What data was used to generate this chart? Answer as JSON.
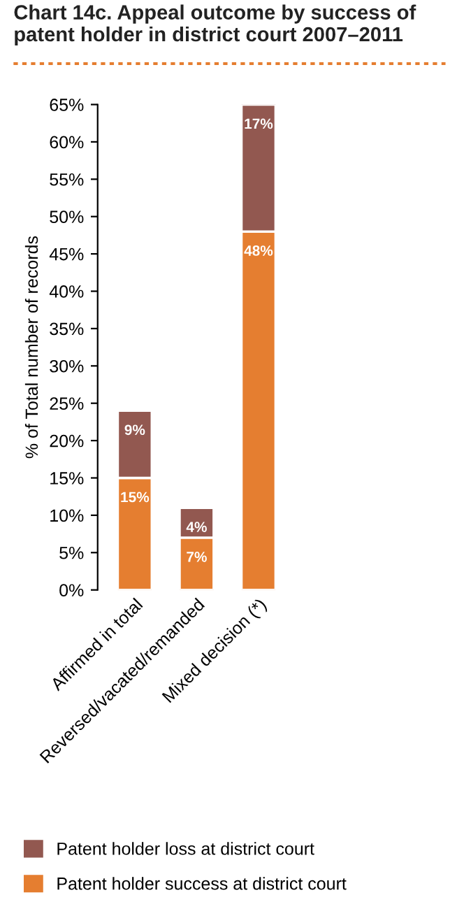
{
  "chart_data": {
    "type": "bar",
    "title": "Chart 14c. Appeal outcome by success of patent holder in district court 2007–2011",
    "ylabel": "% of Total number of records",
    "categories": [
      "Affirmed in total",
      "Reversed/vacated/remanded",
      "Mixed decision (*)"
    ],
    "stacked": true,
    "series": [
      {
        "name": "Patent holder success at district court",
        "color": "#e57e30",
        "values": [
          15,
          7,
          48
        ],
        "value_labels": [
          "15%",
          "7%",
          "48%"
        ]
      },
      {
        "name": "Patent holder loss at district court",
        "color": "#925850",
        "values": [
          9,
          4,
          17
        ],
        "value_labels": [
          "9%",
          "4%",
          "17%"
        ]
      }
    ],
    "ylim": [
      0,
      65
    ],
    "yticks": [
      {
        "value": 0,
        "label": "0%"
      },
      {
        "value": 5,
        "label": "5%"
      },
      {
        "value": 10,
        "label": "10%"
      },
      {
        "value": 15,
        "label": "15%"
      },
      {
        "value": 20,
        "label": "20%"
      },
      {
        "value": 25,
        "label": "25%"
      },
      {
        "value": 30,
        "label": "30%"
      },
      {
        "value": 35,
        "label": "35%"
      },
      {
        "value": 40,
        "label": "40%"
      },
      {
        "value": 45,
        "label": "45%"
      },
      {
        "value": 50,
        "label": "50%"
      },
      {
        "value": 55,
        "label": "55%"
      },
      {
        "value": 60,
        "label": "60%"
      },
      {
        "value": 65,
        "label": "65%"
      }
    ],
    "grid": false,
    "legend": "bottom"
  }
}
